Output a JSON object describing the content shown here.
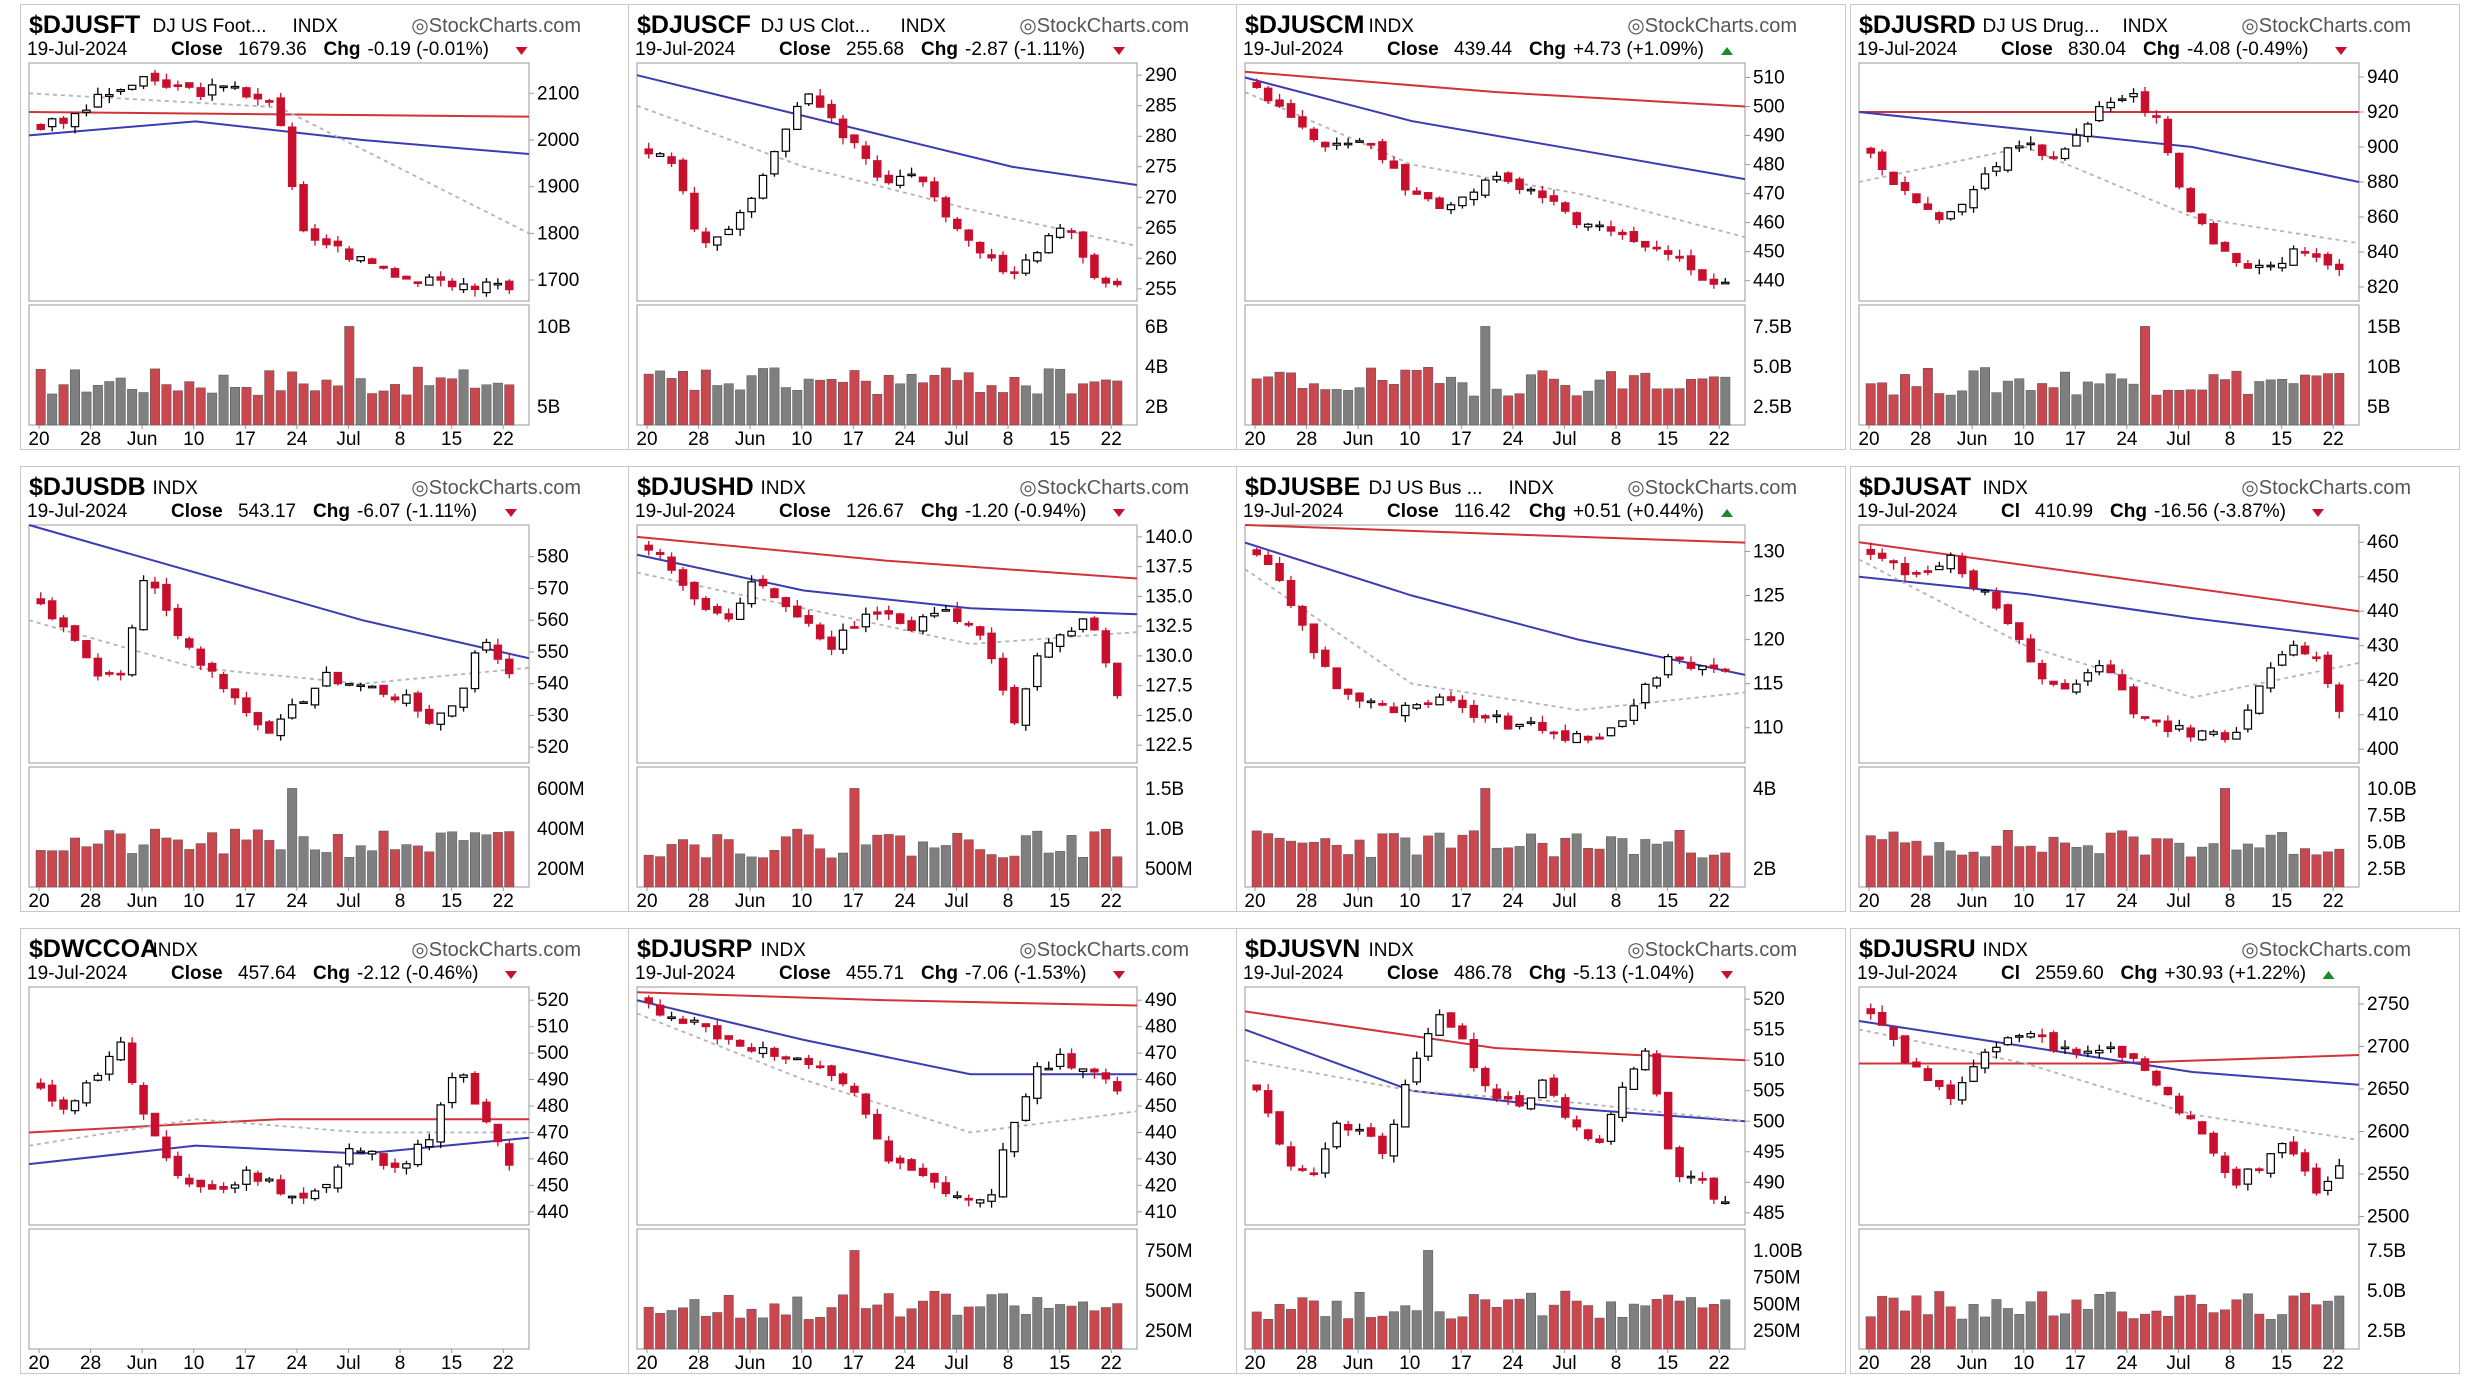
{
  "brand": "StockCharts.com",
  "x_ticks": [
    "20",
    "28",
    "Jun",
    "10",
    "17",
    "24",
    "Jul",
    "8",
    "15",
    "22"
  ],
  "colors": {
    "up": "#ffffff",
    "down": "#c8102e",
    "ma_short": "#b4b4b4",
    "ma_mid": "#3b3bb3",
    "ma_long": "#d0343a",
    "vol_down": "#c9474f",
    "vol_up": "#7f7f7f"
  },
  "chart_data": [
    {
      "type": "candlestick",
      "symbol": "$DJUSFT",
      "name": "DJ US Foot...",
      "exchange": "INDX",
      "date": "19-Jul-2024",
      "close_label": "Close",
      "close": "1679.36",
      "chg_label": "Chg",
      "chg": "-0.19 (-0.01%)",
      "direction": "down",
      "price_ticks": [
        "2100",
        "2000",
        "1900",
        "1800",
        "1700"
      ],
      "ylim": [
        1655,
        2165
      ],
      "volume_ticks": [
        "10B",
        "5B"
      ],
      "volume_max": 14,
      "ma": {
        "ma_long": [
          2060,
          2050
        ],
        "ma_mid": [
          2010,
          2040,
          2000,
          1970
        ],
        "ma_short": [
          2100,
          2070,
          1800
        ]
      },
      "price_path": [
        2030,
        2040,
        2080,
        2110,
        2125,
        2115,
        2105,
        2110,
        2100,
        2085,
        1800,
        1780,
        1750,
        1730,
        1700,
        1710,
        1695,
        1685,
        1680
      ],
      "gap_after": 9,
      "volume_spike": 12
    },
    {
      "type": "candlestick",
      "symbol": "$DJUSCF",
      "name": "DJ US Clot...",
      "exchange": "INDX",
      "date": "19-Jul-2024",
      "close_label": "Close",
      "close": "255.68",
      "chg_label": "Chg",
      "chg": "-2.87 (-1.11%)",
      "direction": "down",
      "price_ticks": [
        "290",
        "285",
        "280",
        "275",
        "270",
        "265",
        "260",
        "255"
      ],
      "ylim": [
        253,
        292
      ],
      "volume_ticks": [
        "6B",
        "4B",
        "2B"
      ],
      "volume_max": 6.5,
      "ma": {
        "ma_long": [],
        "ma_mid": [
          290,
          285,
          280,
          275,
          272
        ],
        "ma_short": [
          285,
          275,
          268,
          262
        ]
      },
      "price_path": [
        278,
        275,
        262,
        265,
        270,
        278,
        288,
        283,
        278,
        272,
        275,
        270,
        263,
        260,
        258,
        262,
        266,
        258,
        256
      ],
      "gap_after": -1,
      "volume_spike": -1
    },
    {
      "type": "candlestick",
      "symbol": "$DJUSCM",
      "name": "",
      "exchange": "INDX",
      "date": "19-Jul-2024",
      "close_label": "Close",
      "close": "439.44",
      "chg_label": "Chg",
      "chg": "+4.73 (+1.09%)",
      "direction": "up",
      "price_ticks": [
        "510",
        "500",
        "490",
        "480",
        "470",
        "460",
        "450",
        "440"
      ],
      "ylim": [
        433,
        515
      ],
      "volume_ticks": [
        "7.5B",
        "5.0B",
        "2.5B"
      ],
      "volume_max": 8,
      "ma": {
        "ma_long": [
          512,
          505,
          500
        ],
        "ma_mid": [
          510,
          495,
          485,
          475
        ],
        "ma_short": [
          505,
          480,
          470,
          455
        ]
      },
      "price_path": [
        505,
        498,
        492,
        485,
        490,
        480,
        470,
        465,
        470,
        475,
        472,
        468,
        462,
        458,
        455,
        450,
        448,
        442,
        439
      ],
      "gap_after": -1,
      "volume_spike": 9
    },
    {
      "type": "candlestick",
      "symbol": "$DJUSRD",
      "name": "DJ US Drug...",
      "exchange": "INDX",
      "date": "19-Jul-2024",
      "close_label": "Close",
      "close": "830.04",
      "chg_label": "Chg",
      "chg": "-4.08 (-0.49%)",
      "direction": "down",
      "price_ticks": [
        "940",
        "920",
        "900",
        "880",
        "860",
        "840",
        "820"
      ],
      "ylim": [
        812,
        948
      ],
      "volume_ticks": [
        "15B",
        "10B",
        "5B"
      ],
      "volume_max": 17,
      "ma": {
        "ma_long": [
          920,
          920
        ],
        "ma_mid": [
          920,
          910,
          900,
          880
        ],
        "ma_short": [
          880,
          900,
          860,
          845
        ]
      },
      "price_path": [
        895,
        880,
        865,
        860,
        875,
        895,
        900,
        895,
        905,
        925,
        930,
        915,
        870,
        850,
        835,
        832,
        838,
        840,
        830
      ],
      "gap_after": 10,
      "volume_spike": 11
    },
    {
      "type": "candlestick",
      "symbol": "$DJUSDB",
      "name": "",
      "exchange": "INDX",
      "date": "19-Jul-2024",
      "close_label": "Close",
      "close": "543.17",
      "chg_label": "Chg",
      "chg": "-6.07 (-1.11%)",
      "direction": "down",
      "price_ticks": [
        "580",
        "570",
        "560",
        "550",
        "540",
        "530",
        "520"
      ],
      "ylim": [
        515,
        590
      ],
      "volume_ticks": [
        "600M",
        "400M",
        "200M"
      ],
      "volume_max": 650,
      "ma": {
        "ma_long": [],
        "ma_mid": [
          590,
          575,
          560,
          548
        ],
        "ma_short": [
          560,
          545,
          540,
          545
        ]
      },
      "price_path": [
        565,
        558,
        545,
        540,
        575,
        560,
        548,
        540,
        530,
        525,
        535,
        542,
        540,
        538,
        535,
        528,
        535,
        555,
        543
      ],
      "gap_after": -1,
      "volume_spike": 10
    },
    {
      "type": "candlestick",
      "symbol": "$DJUSHD",
      "name": "",
      "exchange": "INDX",
      "date": "19-Jul-2024",
      "close_label": "Close",
      "close": "126.67",
      "chg_label": "Chg",
      "chg": "-1.20 (-0.94%)",
      "direction": "down",
      "price_ticks": [
        "140.0",
        "137.5",
        "135.0",
        "132.5",
        "130.0",
        "127.5",
        "125.0",
        "122.5"
      ],
      "ylim": [
        121,
        141
      ],
      "volume_ticks": [
        "1.5B",
        "1.0B",
        "500M"
      ],
      "volume_max": 1.8,
      "ma": {
        "ma_long": [
          140,
          138,
          136.5
        ],
        "ma_mid": [
          138.5,
          135.5,
          134,
          133.5
        ],
        "ma_short": [
          137,
          134,
          131,
          132
        ]
      },
      "price_path": [
        139,
        137,
        134,
        133,
        136,
        135,
        133,
        131,
        133,
        134,
        132,
        134,
        133,
        131,
        124,
        130,
        132,
        133,
        126.7
      ],
      "gap_after": -1,
      "volume_spike": 8
    },
    {
      "type": "candlestick",
      "symbol": "$DJUSBE",
      "name": "DJ US Bus ...",
      "exchange": "INDX",
      "date": "19-Jul-2024",
      "close_label": "Close",
      "close": "116.42",
      "chg_label": "Chg",
      "chg": "+0.51 (+0.44%)",
      "direction": "up",
      "price_ticks": [
        "130",
        "125",
        "120",
        "115",
        "110"
      ],
      "ylim": [
        106,
        133
      ],
      "volume_ticks": [
        "4B",
        "2B"
      ],
      "volume_max": 5,
      "ma": {
        "ma_long": [
          133,
          132,
          131
        ],
        "ma_mid": [
          131,
          125,
          120,
          116
        ],
        "ma_short": [
          128,
          115,
          112,
          114
        ]
      },
      "price_path": [
        130,
        126,
        120,
        115,
        113,
        112,
        112,
        113,
        112,
        111,
        110,
        110,
        109,
        108,
        111,
        115,
        118,
        117,
        116.4
      ],
      "gap_after": -1,
      "volume_spike": 9
    },
    {
      "type": "candlestick",
      "symbol": "$DJUSAT",
      "name": "",
      "exchange": "INDX",
      "date": "19-Jul-2024",
      "close_label": "Cl",
      "close": "410.99",
      "chg_label": "Chg",
      "chg": "-16.56 (-3.87%)",
      "direction": "down",
      "price_ticks": [
        "460",
        "450",
        "440",
        "430",
        "420",
        "410",
        "400"
      ],
      "ylim": [
        396,
        465
      ],
      "volume_ticks": [
        "10.0B",
        "7.5B",
        "5.0B",
        "2.5B"
      ],
      "volume_max": 10.5,
      "ma": {
        "ma_long": [
          460,
          450,
          440
        ],
        "ma_mid": [
          450,
          445,
          438,
          432
        ],
        "ma_short": [
          455,
          430,
          415,
          425
        ]
      },
      "price_path": [
        458,
        452,
        450,
        455,
        448,
        440,
        428,
        418,
        420,
        425,
        412,
        408,
        405,
        404,
        403,
        420,
        430,
        428,
        411
      ],
      "gap_after": -1,
      "volume_spike": 14
    },
    {
      "type": "candlestick",
      "symbol": "$DWCCOA",
      "name": "",
      "exchange": "INDX",
      "date": "19-Jul-2024",
      "close_label": "Close",
      "close": "457.64",
      "chg_label": "Chg",
      "chg": "-2.12 (-0.46%)",
      "direction": "down",
      "price_ticks": [
        "520",
        "510",
        "500",
        "490",
        "480",
        "470",
        "460",
        "450",
        "440"
      ],
      "ylim": [
        435,
        525
      ],
      "volume_ticks": [],
      "volume_max": 1,
      "ma": {
        "ma_long": [
          470,
          475,
          475
        ],
        "ma_mid": [
          458,
          465,
          462,
          468
        ],
        "ma_short": [
          465,
          475,
          470,
          470
        ]
      },
      "price_path": [
        485,
        480,
        490,
        505,
        475,
        455,
        450,
        448,
        455,
        450,
        445,
        450,
        465,
        460,
        458,
        470,
        495,
        475,
        457.6
      ],
      "gap_after": -1,
      "volume_spike": -2
    },
    {
      "type": "candlestick",
      "symbol": "$DJUSRP",
      "name": "",
      "exchange": "INDX",
      "date": "19-Jul-2024",
      "close_label": "Close",
      "close": "455.71",
      "chg_label": "Chg",
      "chg": "-7.06 (-1.53%)",
      "direction": "down",
      "price_ticks": [
        "490",
        "480",
        "470",
        "460",
        "450",
        "440",
        "430",
        "420",
        "410"
      ],
      "ylim": [
        405,
        495
      ],
      "volume_ticks": [
        "750M",
        "500M",
        "250M"
      ],
      "volume_max": 800,
      "ma": {
        "ma_long": [
          493,
          490,
          488
        ],
        "ma_mid": [
          490,
          475,
          462,
          462
        ],
        "ma_short": [
          485,
          460,
          440,
          448
        ]
      },
      "price_path": [
        488,
        484,
        480,
        475,
        472,
        468,
        465,
        462,
        455,
        430,
        425,
        420,
        415,
        412,
        445,
        465,
        468,
        462,
        455.7
      ],
      "gap_after": -1,
      "volume_spike": 8
    },
    {
      "type": "candlestick",
      "symbol": "$DJUSVN",
      "name": "",
      "exchange": "INDX",
      "date": "19-Jul-2024",
      "close_label": "Close",
      "close": "486.78",
      "chg_label": "Chg",
      "chg": "-5.13 (-1.04%)",
      "direction": "down",
      "price_ticks": [
        "520",
        "515",
        "510",
        "505",
        "500",
        "495",
        "490",
        "485"
      ],
      "ylim": [
        483,
        522
      ],
      "volume_ticks": [
        "1.00B",
        "750M",
        "500M",
        "250M"
      ],
      "volume_max": 1.1,
      "ma": {
        "ma_long": [
          518,
          512,
          510
        ],
        "ma_mid": [
          515,
          505,
          502,
          500
        ],
        "ma_short": [
          510,
          505,
          503,
          500
        ]
      },
      "price_path": [
        505,
        495,
        490,
        500,
        498,
        495,
        510,
        518,
        512,
        505,
        503,
        506,
        500,
        495,
        505,
        512,
        492,
        490,
        486.8
      ],
      "gap_after": -1,
      "volume_spike": 7
    },
    {
      "type": "candlestick",
      "symbol": "$DJUSRU",
      "name": "",
      "exchange": "INDX",
      "date": "19-Jul-2024",
      "close_label": "Cl",
      "close": "2559.60",
      "chg_label": "Chg",
      "chg": "+30.93 (+1.22%)",
      "direction": "up",
      "price_ticks": [
        "2750",
        "2700",
        "2650",
        "2600",
        "2550",
        "2500"
      ],
      "ylim": [
        2490,
        2770
      ],
      "volume_ticks": [
        "7.5B",
        "5.0B",
        "2.5B"
      ],
      "volume_max": 8,
      "ma": {
        "ma_long": [
          2680,
          2680,
          2690
        ],
        "ma_mid": [
          2730,
          2700,
          2670,
          2655
        ],
        "ma_short": [
          2720,
          2680,
          2620,
          2590
        ]
      },
      "price_path": [
        2740,
        2700,
        2660,
        2640,
        2680,
        2700,
        2720,
        2700,
        2690,
        2700,
        2690,
        2660,
        2620,
        2580,
        2540,
        2560,
        2590,
        2530,
        2559.6
      ],
      "gap_after": -1,
      "volume_spike": -1
    }
  ]
}
